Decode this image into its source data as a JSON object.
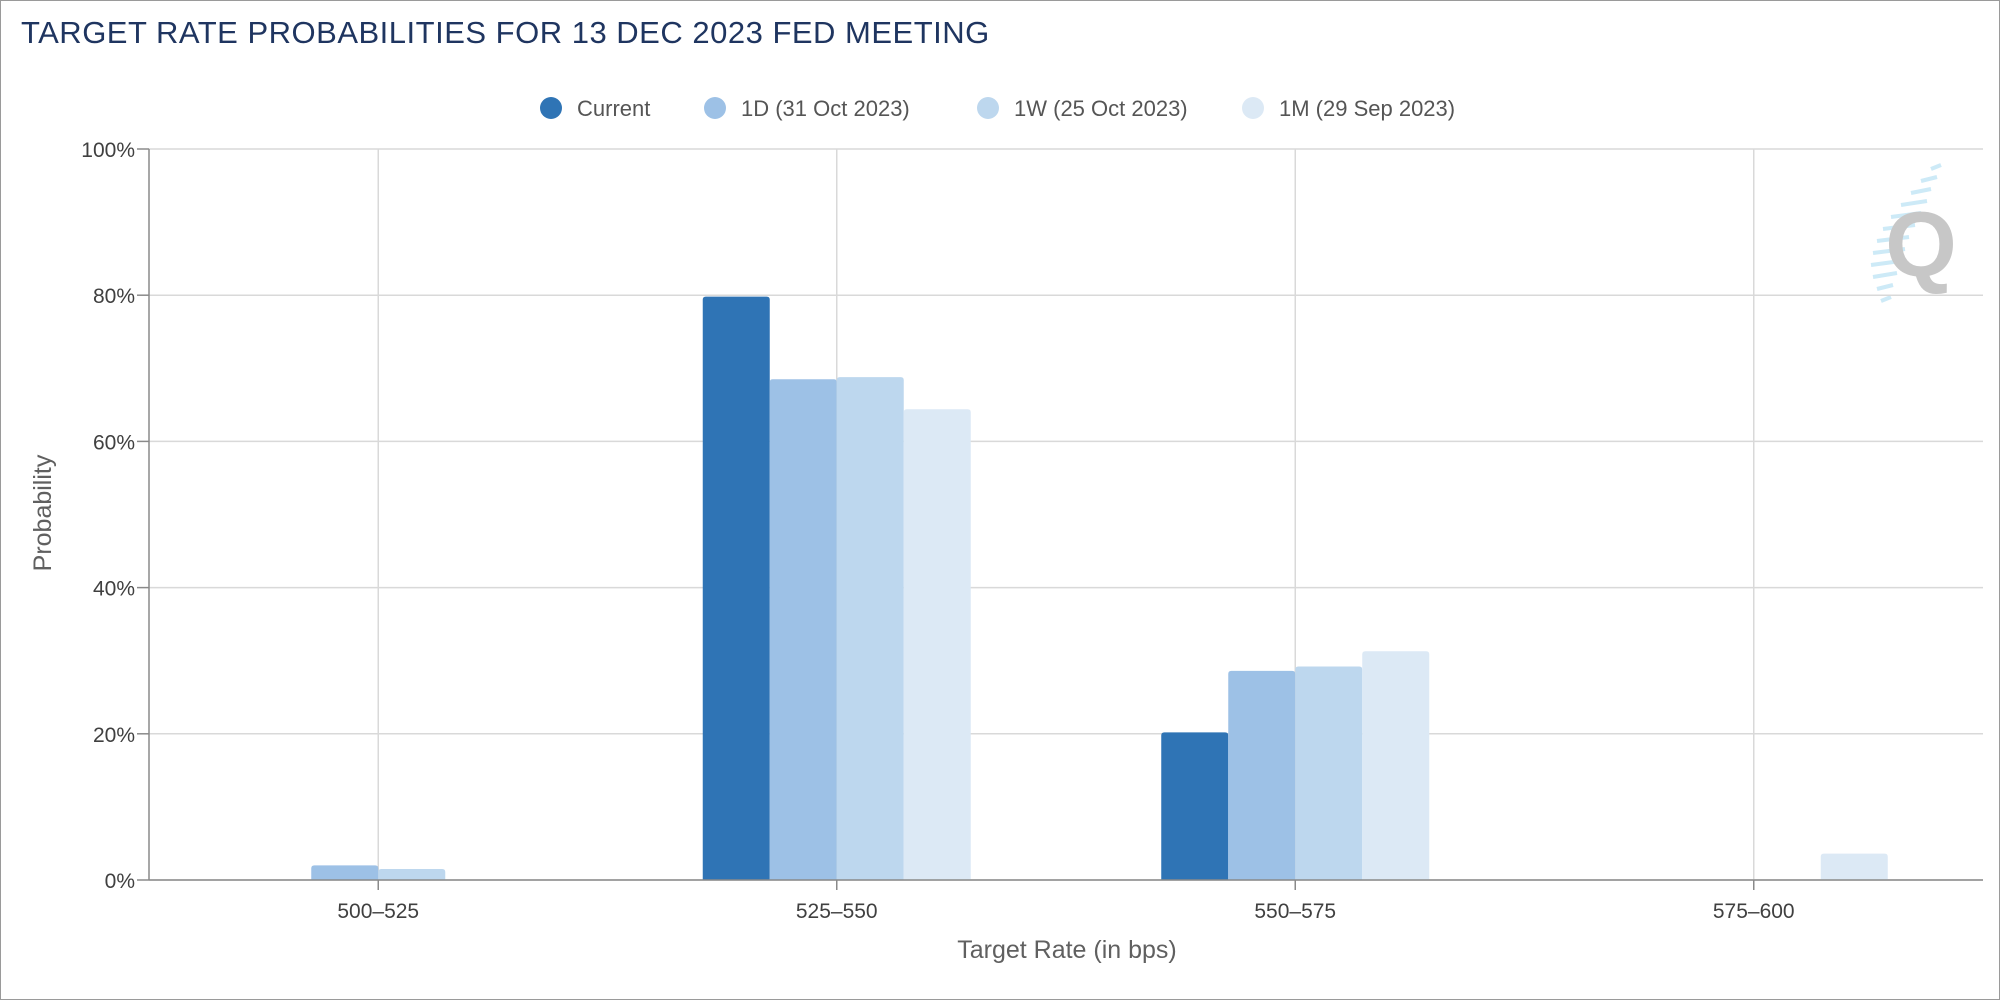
{
  "chart_data": {
    "type": "bar",
    "title": "TARGET RATE PROBABILITIES FOR 13 DEC 2023 FED MEETING",
    "xlabel": "Target Rate (in bps)",
    "ylabel": "Probability",
    "categories": [
      "500-525",
      "525-550",
      "550-575",
      "575-600"
    ],
    "ylim": [
      0,
      100
    ],
    "yticks": [
      0,
      20,
      40,
      60,
      80,
      100
    ],
    "y_tick_suffix": "%",
    "grid": true,
    "legend_position": "top-center",
    "series": [
      {
        "name": "Current",
        "color": "#2f74b5",
        "values": [
          0,
          79.8,
          20.2,
          0
        ]
      },
      {
        "name": "1D (31 Oct 2023)",
        "color": "#9dc1e6",
        "values": [
          2.0,
          68.5,
          28.6,
          0
        ]
      },
      {
        "name": "1W (25 Oct 2023)",
        "color": "#bdd7ee",
        "values": [
          1.5,
          68.8,
          29.2,
          0
        ]
      },
      {
        "name": "1M (29 Sep 2023)",
        "color": "#dce9f5",
        "values": [
          0,
          64.4,
          31.3,
          3.6
        ]
      }
    ]
  }
}
